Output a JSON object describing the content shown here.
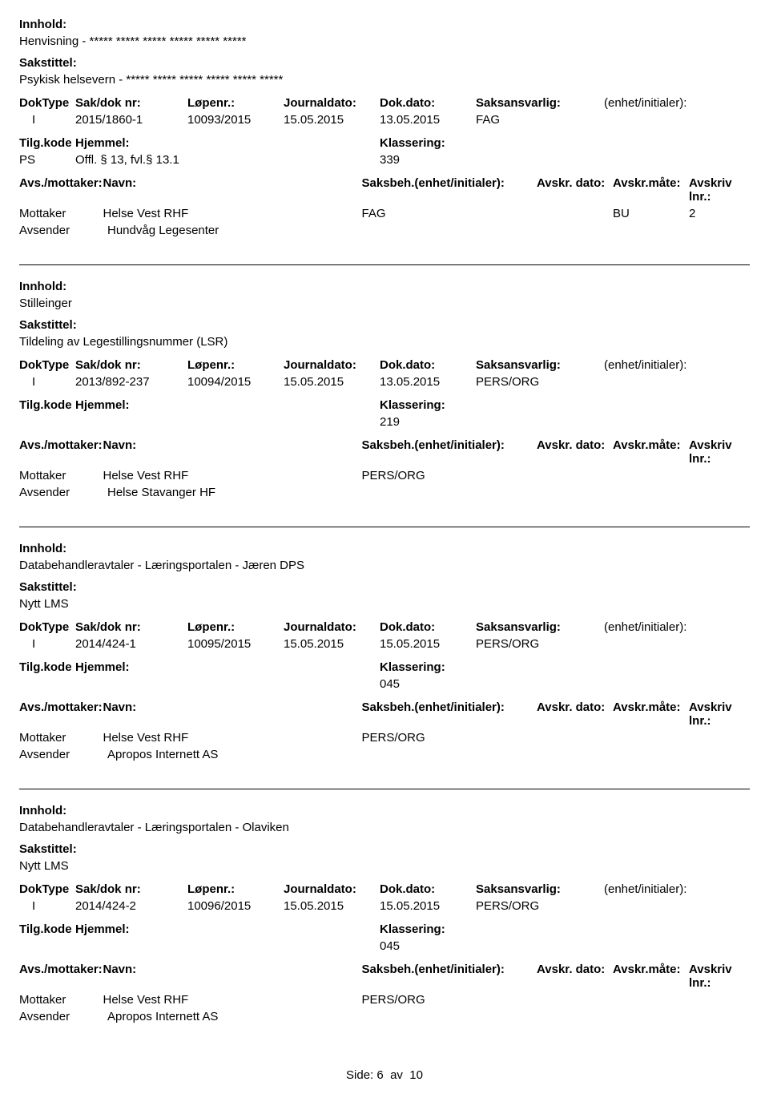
{
  "labels": {
    "innhold": "Innhold:",
    "sakstittel": "Sakstittel:",
    "dokType": "DokType",
    "sakDok": "Sak/dok nr:",
    "lopenr": "Løpenr.:",
    "journaldato": "Journaldato:",
    "dokdato": "Dok.dato:",
    "saksansvarlig": "Saksansvarlig:",
    "enhet": "(enhet/initialer):",
    "tilgkode": "Tilg.kode",
    "hjemmel": "Hjemmel:",
    "klassering": "Klassering:",
    "avsMottaker": "Avs./mottaker:",
    "navn": "Navn:",
    "saksbeh": "Saksbeh.(enhet/initialer):",
    "avskrDato": "Avskr. dato:",
    "avskrMate": "Avskr.måte:",
    "avskrLnr": "Avskriv lnr.:",
    "mottaker": "Mottaker",
    "avsender": "Avsender"
  },
  "entries": [
    {
      "innhold": "Henvisning - ***** ***** ***** ***** ***** *****",
      "sakstittel": "Psykisk helsevern - ***** ***** ***** ***** ***** *****",
      "dokType": "I",
      "sakDok": "2015/1860-1",
      "lopenr": "10093/2015",
      "journaldato": "15.05.2015",
      "dokdato": "13.05.2015",
      "saksansvarlig": "FAG",
      "tilgkode": "PS",
      "hjemmel": "Offl. § 13, fvl.§ 13.1",
      "klassering": "339",
      "mottakerNavn": "Helse Vest RHF",
      "saksbeh": "FAG",
      "avskrMate": "BU",
      "avskrLnr": "2",
      "avsenderNavn": "Hundvåg Legesenter"
    },
    {
      "innhold": "Stilleinger",
      "sakstittel": "Tildeling av Legestillingsnummer (LSR)",
      "dokType": "I",
      "sakDok": "2013/892-237",
      "lopenr": "10094/2015",
      "journaldato": "15.05.2015",
      "dokdato": "13.05.2015",
      "saksansvarlig": "PERS/ORG",
      "tilgkode": "",
      "hjemmel": "",
      "klassering": "219",
      "mottakerNavn": "Helse Vest RHF",
      "saksbeh": "PERS/ORG",
      "avskrMate": "",
      "avskrLnr": "",
      "avsenderNavn": "Helse Stavanger HF"
    },
    {
      "innhold": "Databehandleravtaler - Læringsportalen - Jæren DPS",
      "sakstittel": "Nytt LMS",
      "dokType": "I",
      "sakDok": "2014/424-1",
      "lopenr": "10095/2015",
      "journaldato": "15.05.2015",
      "dokdato": "15.05.2015",
      "saksansvarlig": "PERS/ORG",
      "tilgkode": "",
      "hjemmel": "",
      "klassering": "045",
      "mottakerNavn": "Helse Vest RHF",
      "saksbeh": "PERS/ORG",
      "avskrMate": "",
      "avskrLnr": "",
      "avsenderNavn": "Apropos Internett AS"
    },
    {
      "innhold": "Databehandleravtaler - Læringsportalen - Olaviken",
      "sakstittel": "Nytt LMS",
      "dokType": "I",
      "sakDok": "2014/424-2",
      "lopenr": "10096/2015",
      "journaldato": "15.05.2015",
      "dokdato": "15.05.2015",
      "saksansvarlig": "PERS/ORG",
      "tilgkode": "",
      "hjemmel": "",
      "klassering": "045",
      "mottakerNavn": "Helse Vest RHF",
      "saksbeh": "PERS/ORG",
      "avskrMate": "",
      "avskrLnr": "",
      "avsenderNavn": "Apropos Internett AS"
    }
  ],
  "footer": {
    "side": "Side:",
    "page": "6",
    "av": "av",
    "total": "10"
  }
}
